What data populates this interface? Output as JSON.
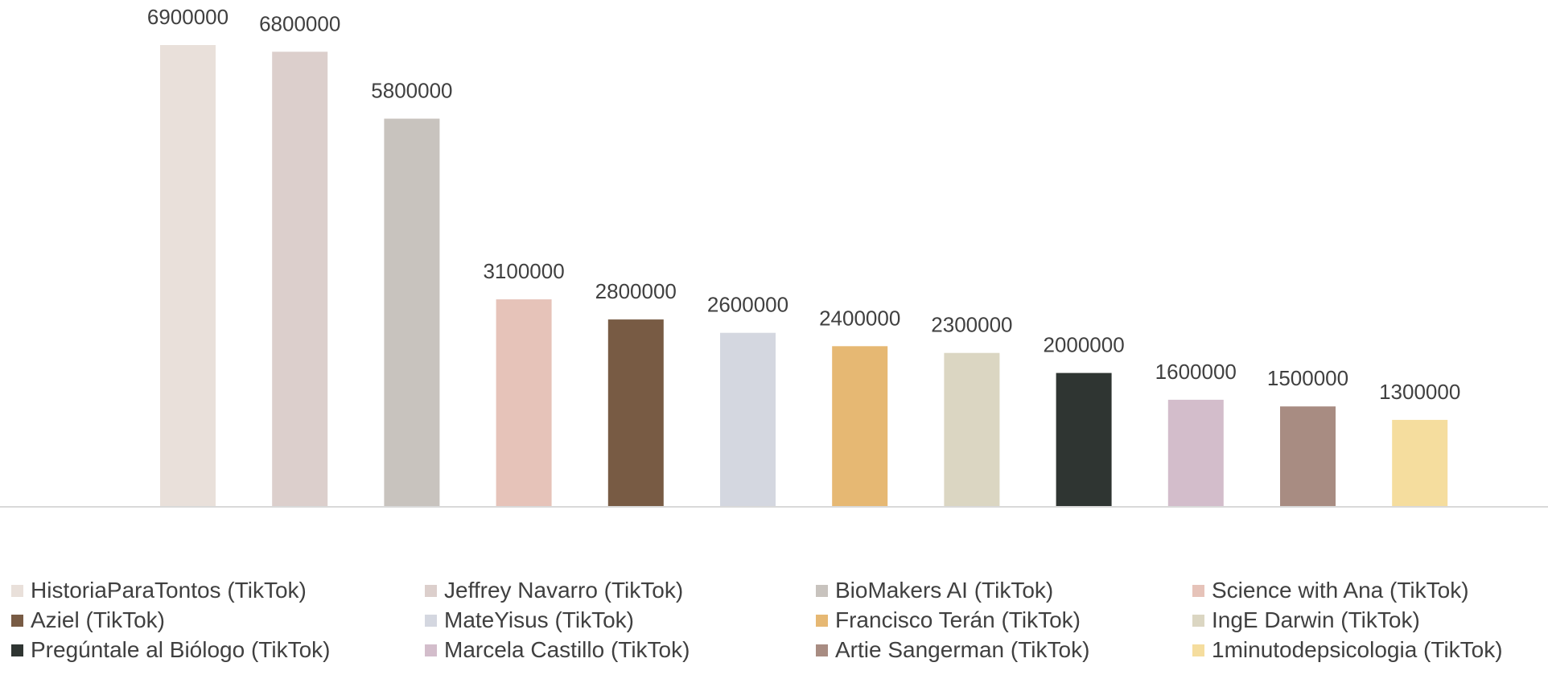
{
  "chart_data": {
    "type": "bar",
    "categories": [
      "HistoriaParaTontos (TikTok)",
      "Jeffrey Navarro (TikTok)",
      "BioMakers AI (TikTok)",
      "Science with Ana (TikTok)",
      "Aziel (TikTok)",
      "MateYisus (TikTok)",
      "Francisco Terán (TikTok)",
      "IngE Darwin (TikTok)",
      "Pregúntale al Biólogo (TikTok)",
      "Marcela Castillo (TikTok)",
      "Artie Sangerman (TikTok)",
      "1minutodepsicologia (TikTok)"
    ],
    "values": [
      6900000,
      6800000,
      5800000,
      3100000,
      2800000,
      2600000,
      2400000,
      2300000,
      2000000,
      1600000,
      1500000,
      1300000
    ],
    "data_labels": [
      "6900000",
      "6800000",
      "5800000",
      "3100000",
      "2800000",
      "2600000",
      "2400000",
      "2300000",
      "2000000",
      "1600000",
      "1500000",
      "1300000"
    ],
    "colors": [
      "#E9E0DA",
      "#DCCFCC",
      "#C8C3BE",
      "#E6C3B9",
      "#785B44",
      "#D4D7E0",
      "#E6B873",
      "#DBD6C2",
      "#2F3532",
      "#D3BDCB",
      "#A88C82",
      "#F5DD9E"
    ],
    "ylim": [
      0,
      7000000
    ],
    "grid": false,
    "legend_position": "bottom"
  }
}
